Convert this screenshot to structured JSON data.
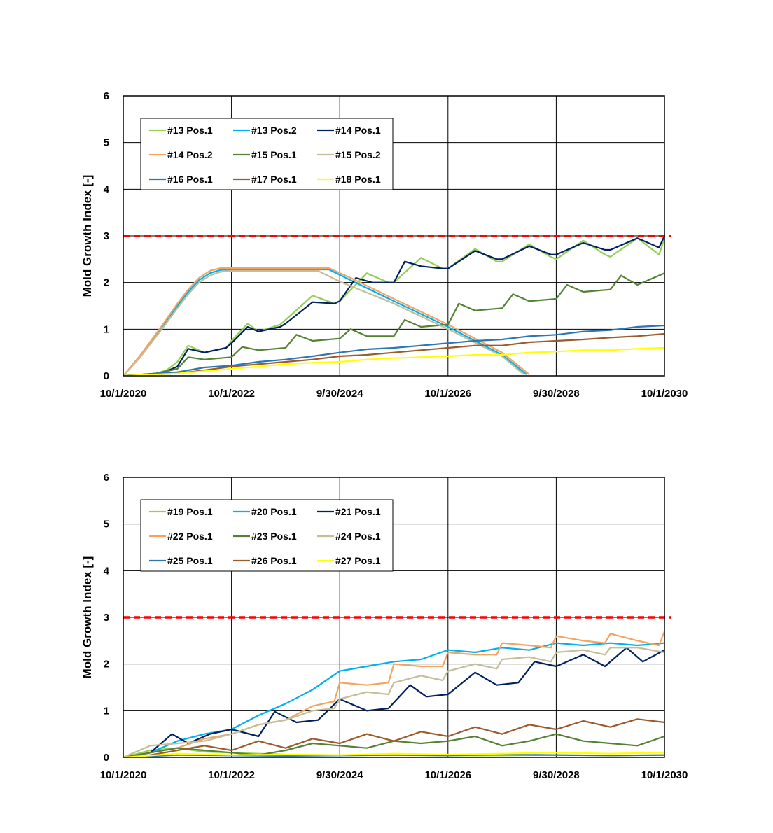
{
  "chart_data": [
    {
      "type": "line",
      "ylabel": "Mold Growth Index [-]",
      "ylim": [
        0,
        6
      ],
      "yticks": [
        "0",
        "1",
        "2",
        "3",
        "4",
        "5",
        "6"
      ],
      "xticks": [
        "10/1/2020",
        "10/1/2022",
        "9/30/2024",
        "10/1/2026",
        "9/30/2028",
        "10/1/2030"
      ],
      "xlim": [
        0,
        10
      ],
      "threshold": {
        "value": 3,
        "color": "#ff0000"
      },
      "legend_position": "top-left",
      "series": [
        {
          "name": "#13 Pos.1",
          "color": "#92d050",
          "x": [
            0,
            0.6,
            0.8,
            1.0,
            1.2,
            1.5,
            1.9,
            2.0,
            2.3,
            2.5,
            2.9,
            3.0,
            3.5,
            3.9,
            4.0,
            4.5,
            4.9,
            5.0,
            5.5,
            5.9,
            6.0,
            6.5,
            6.9,
            7.0,
            7.5,
            7.9,
            8.0,
            8.5,
            8.9,
            9.0,
            9.5,
            9.9,
            10.0
          ],
          "values": [
            0,
            0.05,
            0.12,
            0.3,
            0.65,
            0.5,
            0.6,
            0.75,
            1.12,
            0.95,
            1.1,
            1.2,
            1.72,
            1.55,
            1.6,
            2.2,
            2.0,
            2.0,
            2.53,
            2.3,
            2.3,
            2.72,
            2.45,
            2.45,
            2.82,
            2.55,
            2.5,
            2.9,
            2.6,
            2.55,
            2.95,
            2.6,
            2.95
          ]
        },
        {
          "name": "#13 Pos.2",
          "color": "#00b0f0",
          "x": [
            0,
            0.3,
            0.7,
            1.0,
            1.2,
            1.4,
            1.6,
            1.8,
            2.0,
            2.3,
            3.0,
            3.8,
            4.2,
            5.0,
            6.0,
            7.0,
            7.45
          ],
          "values": [
            0,
            0.4,
            1.0,
            1.5,
            1.8,
            2.05,
            2.2,
            2.27,
            2.28,
            2.28,
            2.28,
            2.28,
            2.05,
            1.6,
            1.05,
            0.45,
            0.03
          ]
        },
        {
          "name": "#14 Pos.1",
          "color": "#002060",
          "x": [
            0,
            0.6,
            0.8,
            1.0,
            1.2,
            1.5,
            1.9,
            2.0,
            2.3,
            2.5,
            2.9,
            3.0,
            3.5,
            3.9,
            4.0,
            4.3,
            4.6,
            4.9,
            5.0,
            5.2,
            5.5,
            5.9,
            6.0,
            6.5,
            6.9,
            7.0,
            7.5,
            7.9,
            8.0,
            8.5,
            8.9,
            9.0,
            9.5,
            9.9,
            10.0
          ],
          "values": [
            0,
            0.05,
            0.1,
            0.2,
            0.58,
            0.5,
            0.6,
            0.7,
            1.05,
            0.95,
            1.05,
            1.12,
            1.58,
            1.55,
            1.6,
            2.1,
            2.0,
            2.0,
            2.0,
            2.45,
            2.35,
            2.3,
            2.3,
            2.68,
            2.5,
            2.5,
            2.78,
            2.6,
            2.6,
            2.85,
            2.7,
            2.7,
            2.95,
            2.75,
            3.0
          ]
        },
        {
          "name": "#14 Pos.2",
          "color": "#f4a460",
          "x": [
            0,
            0.3,
            0.7,
            1.0,
            1.2,
            1.4,
            1.6,
            1.8,
            2.0,
            2.3,
            3.0,
            3.8,
            4.2,
            5.0,
            6.0,
            7.0,
            7.5
          ],
          "values": [
            0,
            0.42,
            1.05,
            1.55,
            1.85,
            2.1,
            2.25,
            2.31,
            2.31,
            2.31,
            2.31,
            2.31,
            2.1,
            1.65,
            1.1,
            0.5,
            0.03
          ]
        },
        {
          "name": "#15 Pos.1",
          "color": "#548235",
          "x": [
            0,
            0.6,
            1.0,
            1.2,
            1.5,
            2.0,
            2.2,
            2.5,
            3.0,
            3.2,
            3.5,
            4.0,
            4.2,
            4.5,
            5.0,
            5.2,
            5.5,
            6.0,
            6.2,
            6.5,
            7.0,
            7.2,
            7.5,
            8.0,
            8.2,
            8.5,
            9.0,
            9.2,
            9.5,
            10.0
          ],
          "values": [
            0,
            0.05,
            0.15,
            0.4,
            0.35,
            0.4,
            0.62,
            0.55,
            0.6,
            0.88,
            0.75,
            0.8,
            1.0,
            0.85,
            0.85,
            1.2,
            1.05,
            1.1,
            1.55,
            1.4,
            1.45,
            1.75,
            1.6,
            1.65,
            1.95,
            1.8,
            1.85,
            2.15,
            1.95,
            2.2
          ]
        },
        {
          "name": "#15 Pos.2",
          "color": "#c4bd97",
          "x": [
            0,
            0.3,
            0.7,
            1.0,
            1.2,
            1.4,
            1.6,
            1.8,
            2.0,
            2.3,
            3.0,
            3.6,
            4.0,
            5.0,
            6.0,
            7.0,
            7.4
          ],
          "values": [
            0,
            0.38,
            0.98,
            1.45,
            1.75,
            2.0,
            2.15,
            2.23,
            2.25,
            2.25,
            2.25,
            2.25,
            2.02,
            1.55,
            1.0,
            0.42,
            0.03
          ]
        },
        {
          "name": "#16 Pos.1",
          "color": "#2e75b6",
          "x": [
            0,
            1.0,
            1.5,
            2.0,
            2.5,
            3.0,
            3.5,
            4.0,
            4.5,
            5.0,
            5.5,
            6.0,
            6.5,
            7.0,
            7.5,
            8.0,
            8.5,
            9.0,
            9.5,
            10.0
          ],
          "values": [
            0,
            0.08,
            0.18,
            0.22,
            0.3,
            0.35,
            0.42,
            0.5,
            0.57,
            0.6,
            0.65,
            0.7,
            0.75,
            0.78,
            0.85,
            0.88,
            0.95,
            0.98,
            1.05,
            1.08
          ]
        },
        {
          "name": "#17 Pos.1",
          "color": "#9c5b2c",
          "x": [
            0,
            1.0,
            1.5,
            2.0,
            2.5,
            3.0,
            3.5,
            4.0,
            4.5,
            5.0,
            5.5,
            6.0,
            6.5,
            7.0,
            7.5,
            8.0,
            8.5,
            9.0,
            9.5,
            10.0
          ],
          "values": [
            0,
            0.05,
            0.12,
            0.2,
            0.25,
            0.3,
            0.35,
            0.42,
            0.45,
            0.5,
            0.55,
            0.6,
            0.65,
            0.65,
            0.72,
            0.75,
            0.78,
            0.82,
            0.85,
            0.9
          ]
        },
        {
          "name": "#18 Pos.1",
          "color": "#ffff00",
          "x": [
            0,
            1.0,
            1.5,
            2.0,
            2.5,
            3.0,
            3.5,
            4.0,
            4.5,
            5.0,
            5.5,
            6.0,
            6.5,
            7.0,
            7.5,
            8.0,
            8.5,
            9.0,
            9.5,
            10.0
          ],
          "values": [
            0,
            0.05,
            0.1,
            0.15,
            0.2,
            0.25,
            0.28,
            0.3,
            0.35,
            0.38,
            0.4,
            0.42,
            0.45,
            0.45,
            0.5,
            0.52,
            0.55,
            0.55,
            0.58,
            0.6
          ]
        }
      ]
    },
    {
      "type": "line",
      "ylabel": "Mold Growth Index [-]",
      "ylim": [
        0,
        6
      ],
      "yticks": [
        "0",
        "1",
        "2",
        "3",
        "4",
        "5",
        "6"
      ],
      "xticks": [
        "10/1/2020",
        "10/1/2022",
        "9/30/2024",
        "10/1/2026",
        "9/30/2028",
        "10/1/2030"
      ],
      "xlim": [
        0,
        10
      ],
      "threshold": {
        "value": 3,
        "color": "#ff0000"
      },
      "legend_position": "top-left",
      "series": [
        {
          "name": "#19 Pos.1",
          "color": "#92d050",
          "x": [
            0,
            0.5,
            1.0,
            1.5,
            2.0,
            2.5,
            3.0,
            4.0,
            5.0,
            6.0,
            7.0,
            8.0,
            9.0,
            10.0
          ],
          "values": [
            0,
            0.15,
            0.2,
            0.12,
            0.1,
            0.08,
            0.06,
            0.05,
            0.05,
            0.04,
            0.04,
            0.05,
            0.04,
            0.05
          ]
        },
        {
          "name": "#20 Pos.1",
          "color": "#00b0f0",
          "x": [
            0,
            0.5,
            1.0,
            1.5,
            2.0,
            2.5,
            3.0,
            3.5,
            4.0,
            4.5,
            5.0,
            5.5,
            6.0,
            6.5,
            7.0,
            7.5,
            8.0,
            8.5,
            9.0,
            9.5,
            10.0
          ],
          "values": [
            0,
            0.1,
            0.35,
            0.5,
            0.6,
            0.9,
            1.15,
            1.45,
            1.85,
            1.95,
            2.05,
            2.1,
            2.3,
            2.25,
            2.35,
            2.3,
            2.45,
            2.4,
            2.45,
            2.4,
            2.45
          ]
        },
        {
          "name": "#21 Pos.1",
          "color": "#002060",
          "x": [
            0,
            0.5,
            0.9,
            1.2,
            1.6,
            2.0,
            2.5,
            2.8,
            3.2,
            3.6,
            4.0,
            4.5,
            4.9,
            5.3,
            5.6,
            6.0,
            6.5,
            6.9,
            7.3,
            7.6,
            8.0,
            8.5,
            8.9,
            9.3,
            9.6,
            10.0
          ],
          "values": [
            0,
            0.1,
            0.5,
            0.3,
            0.5,
            0.6,
            0.45,
            0.98,
            0.75,
            0.8,
            1.25,
            1.0,
            1.05,
            1.55,
            1.3,
            1.35,
            1.82,
            1.55,
            1.6,
            2.05,
            1.95,
            2.2,
            1.95,
            2.35,
            2.05,
            2.3
          ]
        },
        {
          "name": "#22 Pos.1",
          "color": "#f4a460",
          "x": [
            0,
            0.5,
            1.0,
            1.5,
            2.0,
            2.5,
            3.0,
            3.5,
            3.9,
            4.0,
            4.5,
            4.9,
            5.0,
            5.5,
            5.9,
            6.0,
            6.5,
            6.9,
            7.0,
            7.5,
            7.9,
            8.0,
            8.5,
            8.9,
            9.0,
            9.5,
            9.9,
            10.0
          ],
          "values": [
            0,
            0.1,
            0.2,
            0.4,
            0.5,
            0.7,
            0.8,
            1.1,
            1.2,
            1.6,
            1.55,
            1.6,
            2.0,
            1.95,
            1.95,
            2.25,
            2.2,
            2.2,
            2.45,
            2.4,
            2.35,
            2.6,
            2.5,
            2.45,
            2.65,
            2.5,
            2.4,
            2.7
          ]
        },
        {
          "name": "#23 Pos.1",
          "color": "#548235",
          "x": [
            0,
            0.5,
            1.0,
            1.5,
            2.0,
            2.5,
            3.0,
            3.5,
            4.0,
            4.5,
            5.0,
            5.5,
            6.0,
            6.5,
            7.0,
            7.5,
            8.0,
            8.5,
            9.0,
            9.5,
            10.0
          ],
          "values": [
            0,
            0.1,
            0.2,
            0.15,
            0.1,
            0.05,
            0.15,
            0.3,
            0.25,
            0.2,
            0.35,
            0.3,
            0.35,
            0.45,
            0.25,
            0.35,
            0.5,
            0.35,
            0.3,
            0.25,
            0.45
          ]
        },
        {
          "name": "#24 Pos.1",
          "color": "#c4bd97",
          "x": [
            0,
            0.5,
            1.0,
            1.5,
            2.0,
            2.5,
            3.0,
            3.5,
            3.9,
            4.0,
            4.5,
            4.9,
            5.0,
            5.5,
            5.9,
            6.0,
            6.5,
            6.9,
            7.0,
            7.5,
            7.9,
            8.0,
            8.5,
            8.9,
            9.0,
            9.5,
            10.0
          ],
          "values": [
            0,
            0.25,
            0.3,
            0.35,
            0.5,
            0.7,
            0.8,
            1.0,
            1.05,
            1.25,
            1.4,
            1.35,
            1.6,
            1.75,
            1.65,
            1.85,
            2.0,
            1.9,
            2.1,
            2.15,
            2.05,
            2.25,
            2.3,
            2.2,
            2.35,
            2.35,
            2.25
          ]
        },
        {
          "name": "#25 Pos.1",
          "color": "#2e75b6",
          "x": [
            0,
            1.0,
            2.0,
            3.0,
            4.0,
            5.0,
            6.0,
            7.0,
            8.0,
            9.0,
            10.0
          ],
          "values": [
            0,
            0.05,
            0.04,
            0.03,
            0.04,
            0.05,
            0.04,
            0.06,
            0.05,
            0.04,
            0.05
          ]
        },
        {
          "name": "#26 Pos.1",
          "color": "#9c5b2c",
          "x": [
            0,
            0.5,
            1.0,
            1.5,
            2.0,
            2.5,
            3.0,
            3.5,
            4.0,
            4.5,
            5.0,
            5.5,
            6.0,
            6.5,
            7.0,
            7.5,
            8.0,
            8.5,
            9.0,
            9.5,
            10.0
          ],
          "values": [
            0,
            0.05,
            0.15,
            0.25,
            0.15,
            0.35,
            0.2,
            0.4,
            0.3,
            0.5,
            0.35,
            0.55,
            0.45,
            0.65,
            0.5,
            0.7,
            0.6,
            0.78,
            0.65,
            0.82,
            0.75
          ]
        },
        {
          "name": "#27 Pos.1",
          "color": "#ffff00",
          "x": [
            0,
            1.0,
            2.0,
            3.0,
            4.0,
            5.0,
            6.0,
            7.0,
            8.0,
            9.0,
            10.0
          ],
          "values": [
            0,
            0.08,
            0.05,
            0.06,
            0.05,
            0.08,
            0.06,
            0.08,
            0.1,
            0.08,
            0.1
          ]
        }
      ]
    }
  ]
}
